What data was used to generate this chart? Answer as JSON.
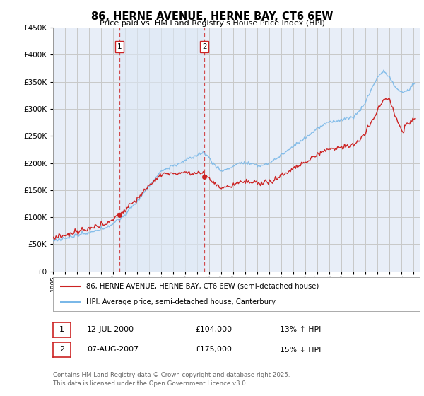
{
  "title": "86, HERNE AVENUE, HERNE BAY, CT6 6EW",
  "subtitle": "Price paid vs. HM Land Registry's House Price Index (HPI)",
  "legend_line1": "86, HERNE AVENUE, HERNE BAY, CT6 6EW (semi-detached house)",
  "legend_line2": "HPI: Average price, semi-detached house, Canterbury",
  "footer": "Contains HM Land Registry data © Crown copyright and database right 2025.\nThis data is licensed under the Open Government Licence v3.0.",
  "sale1_date": "12-JUL-2000",
  "sale1_price": "£104,000",
  "sale1_hpi": "13% ↑ HPI",
  "sale2_date": "07-AUG-2007",
  "sale2_price": "£175,000",
  "sale2_hpi": "15% ↓ HPI",
  "hpi_color": "#7ab8e8",
  "price_color": "#cc2222",
  "vline_color": "#cc2222",
  "background_color": "#ffffff",
  "plot_bg_color": "#e8eef8",
  "grid_color": "#c8c8c8",
  "ylim": [
    0,
    450000
  ],
  "yticks": [
    0,
    50000,
    100000,
    150000,
    200000,
    250000,
    300000,
    350000,
    400000,
    450000
  ],
  "sale1_year": 2000.54,
  "sale1_price_val": 104000,
  "sale2_year": 2007.6,
  "sale2_price_val": 175000
}
